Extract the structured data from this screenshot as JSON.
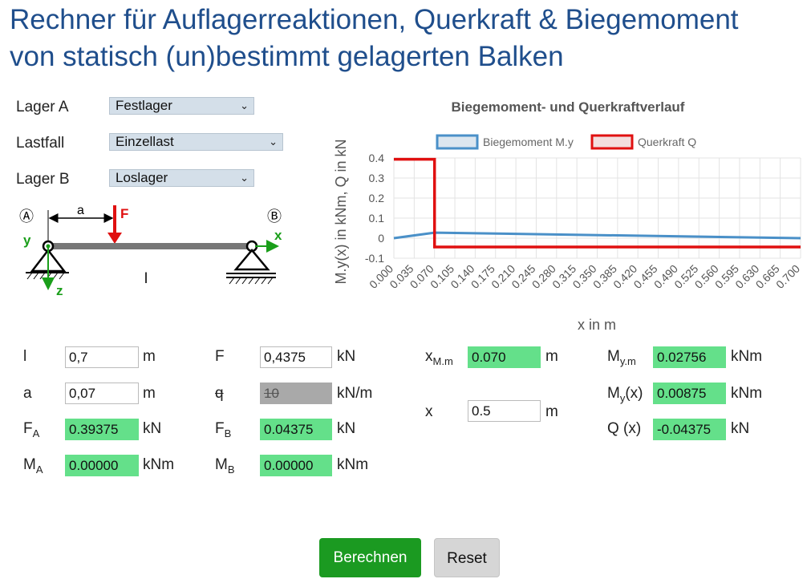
{
  "page": {
    "title_line1": "Rechner für Auflagerreaktionen, Querkraft & Biegemoment",
    "title_line2": "von statisch (un)bestimmt gelagerten Balken"
  },
  "selects": {
    "lager_a": {
      "label": "Lager A",
      "value": "Festlager"
    },
    "lastfall": {
      "label": "Lastfall",
      "value": "Einzellast"
    },
    "lager_b": {
      "label": "Lager B",
      "value": "Loslager"
    }
  },
  "diagram": {
    "support_a": "Ⓐ",
    "support_b": "Ⓑ",
    "label_a": "a",
    "label_F": "F",
    "label_y": "y",
    "label_x": "x",
    "label_z": "z",
    "label_l": "l"
  },
  "chart_data": {
    "type": "line",
    "title": "Biegemoment- und Querkraftverlauf",
    "xlabel": "x in m",
    "ylabel": "M.y(x) in kNm, Q in kN",
    "ylim": [
      -0.1,
      0.4
    ],
    "yticks": [
      "0.4",
      "0.3",
      "0.2",
      "0.1",
      "0",
      "-0.1"
    ],
    "xticks": [
      "0.000",
      "0.035",
      "0.070",
      "0.105",
      "0.140",
      "0.175",
      "0.210",
      "0.245",
      "0.280",
      "0.315",
      "0.350",
      "0.385",
      "0.420",
      "0.455",
      "0.490",
      "0.525",
      "0.560",
      "0.595",
      "0.630",
      "0.665",
      "0.700"
    ],
    "legend_position": "top",
    "grid": true,
    "series": [
      {
        "name": "Biegemoment M.y",
        "color": "#4a90c8",
        "x": [
          0,
          0.07,
          0.7
        ],
        "y": [
          0,
          0.02756,
          0
        ]
      },
      {
        "name": "Querkraft Q",
        "color": "#e01010",
        "x": [
          0,
          0.07,
          0.07,
          0.7
        ],
        "y": [
          0.39375,
          0.39375,
          -0.04375,
          -0.04375
        ]
      }
    ]
  },
  "inputs": {
    "l": {
      "symbol": "l",
      "value": "0,7",
      "unit": "m"
    },
    "a": {
      "symbol": "a",
      "value": "0,07",
      "unit": "m"
    },
    "F": {
      "symbol": "F",
      "value": "0,4375",
      "unit": "kN"
    },
    "q": {
      "symbol": "q",
      "value": "10",
      "unit": "kN/m"
    },
    "x": {
      "symbol": "x",
      "value": "0.5",
      "unit": "m"
    }
  },
  "outputs": {
    "FA": {
      "sym": "F",
      "sub": "A",
      "value": "0.39375",
      "unit": "kN"
    },
    "FB": {
      "sym": "F",
      "sub": "B",
      "value": "0.04375",
      "unit": "kN"
    },
    "MA": {
      "sym": "M",
      "sub": "A",
      "value": "0.00000",
      "unit": "kNm"
    },
    "MB": {
      "sym": "M",
      "sub": "B",
      "value": "0.00000",
      "unit": "kNm"
    },
    "xMm": {
      "sym": "x",
      "sub": "M.m",
      "value": "0.070",
      "unit": "m"
    },
    "Mym": {
      "sym": "M",
      "sub": "y.m",
      "value": "0.02756",
      "unit": "kNm"
    },
    "Myx": {
      "sym": "M",
      "sub": "y",
      "suffix": "(x)",
      "value": "0.00875",
      "unit": "kNm"
    },
    "Qx": {
      "sym": "Q (x)",
      "value": "-0.04375",
      "unit": "kN"
    }
  },
  "buttons": {
    "calc": "Berechnen",
    "reset": "Reset"
  }
}
